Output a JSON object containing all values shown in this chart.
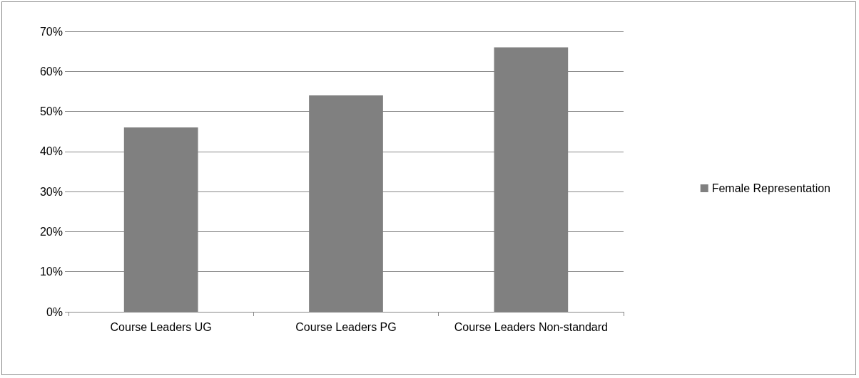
{
  "chart_data": {
    "type": "bar",
    "categories": [
      "Course Leaders UG",
      "Course Leaders PG",
      "Course Leaders Non-standard"
    ],
    "series": [
      {
        "name": "Female Representation",
        "color": "#808080",
        "values": [
          46,
          54,
          66
        ]
      }
    ],
    "ylim": [
      0,
      70
    ],
    "yticks": [
      {
        "value": 0,
        "label": "0%"
      },
      {
        "value": 10,
        "label": "10%"
      },
      {
        "value": 20,
        "label": "20%"
      },
      {
        "value": 30,
        "label": "30%"
      },
      {
        "value": 40,
        "label": "40%"
      },
      {
        "value": 50,
        "label": "50%"
      },
      {
        "value": 60,
        "label": "60%"
      },
      {
        "value": 70,
        "label": "70%"
      }
    ],
    "grid": "y",
    "legend": "right"
  }
}
